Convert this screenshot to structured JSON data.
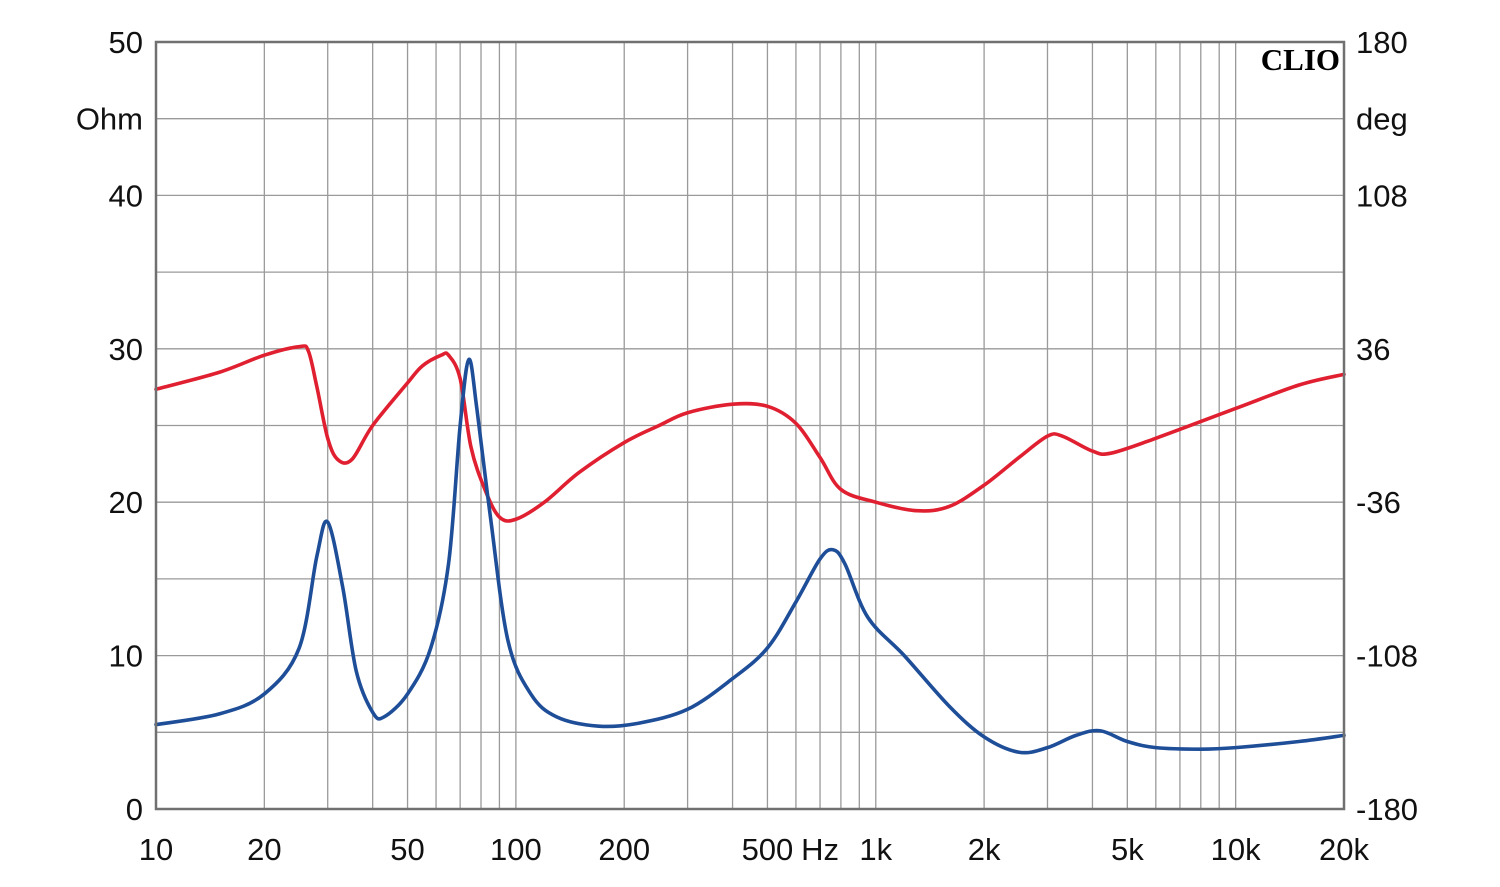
{
  "chart_data": {
    "type": "line",
    "brand": "CLIO",
    "x_scale": "log",
    "xlim": [
      10,
      20000
    ],
    "x_unit_label": "Hz",
    "x_ticks": [
      {
        "value": 10,
        "label": "10"
      },
      {
        "value": 20,
        "label": "20"
      },
      {
        "value": 50,
        "label": "50"
      },
      {
        "value": 100,
        "label": "100"
      },
      {
        "value": 200,
        "label": "200"
      },
      {
        "value": 500,
        "label": "500"
      },
      {
        "value": 1000,
        "label": "1k"
      },
      {
        "value": 2000,
        "label": "2k"
      },
      {
        "value": 5000,
        "label": "5k"
      },
      {
        "value": 10000,
        "label": "10k"
      },
      {
        "value": 20000,
        "label": "20k"
      }
    ],
    "y_left": {
      "unit_label": "Ohm",
      "ylim": [
        0,
        50
      ],
      "ticks": [
        {
          "value": 0,
          "label": "0"
        },
        {
          "value": 10,
          "label": "10"
        },
        {
          "value": 20,
          "label": "20"
        },
        {
          "value": 30,
          "label": "30"
        },
        {
          "value": 40,
          "label": "40"
        },
        {
          "value": 50,
          "label": "50"
        }
      ]
    },
    "y_right": {
      "unit_label": "deg",
      "ylim": [
        -180,
        180
      ],
      "ticks": [
        {
          "value": -180,
          "label": "-180"
        },
        {
          "value": -108,
          "label": "-108"
        },
        {
          "value": -36,
          "label": "-36"
        },
        {
          "value": 36,
          "label": "36"
        },
        {
          "value": 108,
          "label": "108"
        },
        {
          "value": 180,
          "label": "180"
        }
      ]
    },
    "grid": true,
    "series": [
      {
        "axis": "left",
        "color": "#1f4e99",
        "points": [
          [
            10,
            5.5
          ],
          [
            15,
            6.2
          ],
          [
            20,
            7.5
          ],
          [
            25,
            10.5
          ],
          [
            28,
            16.5
          ],
          [
            30,
            18.7
          ],
          [
            33,
            14.5
          ],
          [
            36,
            9.0
          ],
          [
            40,
            6.3
          ],
          [
            43,
            6.0
          ],
          [
            50,
            7.5
          ],
          [
            58,
            10.5
          ],
          [
            65,
            16.0
          ],
          [
            70,
            25.0
          ],
          [
            74,
            29.3
          ],
          [
            78,
            26.0
          ],
          [
            85,
            19.0
          ],
          [
            95,
            11.0
          ],
          [
            110,
            7.5
          ],
          [
            130,
            6.0
          ],
          [
            170,
            5.4
          ],
          [
            220,
            5.6
          ],
          [
            300,
            6.5
          ],
          [
            400,
            8.5
          ],
          [
            500,
            10.5
          ],
          [
            600,
            13.5
          ],
          [
            700,
            16.3
          ],
          [
            760,
            16.9
          ],
          [
            820,
            16.0
          ],
          [
            950,
            12.5
          ],
          [
            1200,
            10.0
          ],
          [
            1600,
            6.7
          ],
          [
            2000,
            4.7
          ],
          [
            2500,
            3.7
          ],
          [
            3000,
            4.0
          ],
          [
            3600,
            4.8
          ],
          [
            4200,
            5.1
          ],
          [
            5000,
            4.4
          ],
          [
            6000,
            4.0
          ],
          [
            8000,
            3.9
          ],
          [
            10000,
            4.0
          ],
          [
            15000,
            4.4
          ],
          [
            20000,
            4.8
          ]
        ]
      },
      {
        "axis": "right",
        "color": "#e02030",
        "points": [
          [
            10,
            17
          ],
          [
            15,
            25
          ],
          [
            20,
            33
          ],
          [
            25,
            37
          ],
          [
            26.5,
            35
          ],
          [
            28,
            18
          ],
          [
            30,
            -6
          ],
          [
            32,
            -16
          ],
          [
            35,
            -16
          ],
          [
            40,
            0
          ],
          [
            50,
            20
          ],
          [
            55,
            28
          ],
          [
            62,
            33
          ],
          [
            65,
            33
          ],
          [
            70,
            22
          ],
          [
            75,
            -10
          ],
          [
            82,
            -30
          ],
          [
            90,
            -43
          ],
          [
            100,
            -44
          ],
          [
            120,
            -36
          ],
          [
            150,
            -22
          ],
          [
            200,
            -8
          ],
          [
            250,
            0
          ],
          [
            300,
            6
          ],
          [
            400,
            10
          ],
          [
            500,
            9
          ],
          [
            600,
            1
          ],
          [
            700,
            -15
          ],
          [
            800,
            -30
          ],
          [
            1000,
            -36
          ],
          [
            1300,
            -40
          ],
          [
            1600,
            -38
          ],
          [
            2000,
            -28
          ],
          [
            2500,
            -15
          ],
          [
            3000,
            -5
          ],
          [
            3300,
            -5
          ],
          [
            4000,
            -12
          ],
          [
            4500,
            -13
          ],
          [
            6000,
            -6
          ],
          [
            10000,
            8
          ],
          [
            15000,
            19
          ],
          [
            20000,
            24
          ]
        ]
      }
    ]
  }
}
